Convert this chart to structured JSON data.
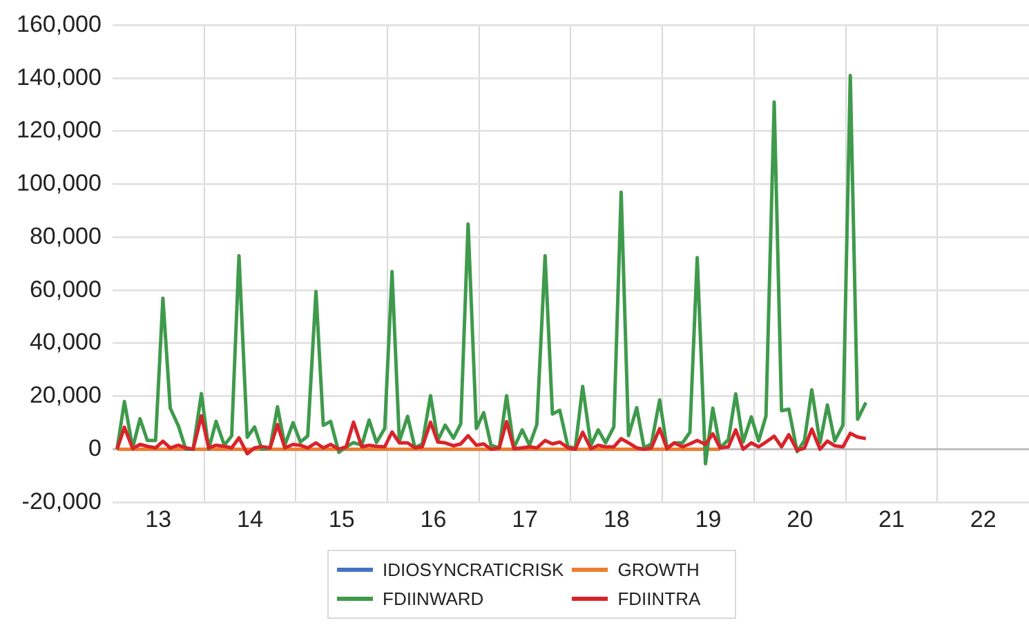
{
  "chart_data": {
    "type": "line",
    "x": [
      12.55,
      12.63,
      12.72,
      12.8,
      12.88,
      12.97,
      13.05,
      13.13,
      13.22,
      13.3,
      13.38,
      13.47,
      13.55,
      13.63,
      13.72,
      13.8,
      13.88,
      13.97,
      14.05,
      14.13,
      14.22,
      14.3,
      14.38,
      14.47,
      14.55,
      14.63,
      14.72,
      14.8,
      14.88,
      14.97,
      15.05,
      15.13,
      15.22,
      15.3,
      15.38,
      15.47,
      15.55,
      15.63,
      15.72,
      15.8,
      15.88,
      15.97,
      16.05,
      16.13,
      16.22,
      16.3,
      16.38,
      16.47,
      16.55,
      16.63,
      16.72,
      16.8,
      16.88,
      16.97,
      17.05,
      17.13,
      17.22,
      17.3,
      17.38,
      17.47,
      17.55,
      17.63,
      17.72,
      17.8,
      17.88,
      17.97,
      18.05,
      18.13,
      18.22,
      18.3,
      18.38,
      18.47,
      18.55,
      18.63,
      18.72,
      18.8,
      18.88,
      18.97,
      19.05,
      19.13,
      19.22,
      19.3,
      19.38,
      19.47,
      19.55,
      19.63,
      19.72,
      19.8,
      19.88,
      19.97,
      20.05,
      20.13,
      20.22,
      20.3,
      20.38,
      20.47,
      20.55,
      20.63,
      20.72
    ],
    "series": [
      {
        "name": "IDIOSYNCRATICRISK",
        "color": "#4472c4",
        "values": [
          null,
          null,
          null,
          null,
          null,
          null,
          null,
          null,
          null,
          null,
          null,
          null,
          null,
          null,
          null,
          null,
          null,
          null,
          null,
          null,
          null,
          null,
          null,
          null,
          null,
          null,
          null,
          null,
          null,
          null,
          null,
          null,
          null,
          null,
          null,
          null,
          null,
          null,
          null,
          null,
          null,
          null,
          null,
          null,
          null,
          null,
          null,
          null,
          null,
          null,
          null,
          null,
          null,
          null,
          null,
          null,
          null,
          null,
          null,
          null,
          null,
          null,
          null,
          null,
          null,
          null,
          null,
          null,
          null,
          null,
          null,
          null,
          null,
          null,
          null,
          null,
          null,
          null,
          null,
          null,
          null,
          null,
          null,
          null,
          null,
          null,
          null,
          null,
          null,
          null,
          null,
          null,
          null,
          null,
          null,
          null,
          null,
          null,
          null
        ]
      },
      {
        "name": "GROWTH",
        "color": "#ed7d31",
        "values": [
          0,
          0,
          0,
          0,
          0,
          0,
          0,
          0,
          0,
          0,
          0,
          0,
          0,
          0,
          0,
          0,
          0,
          0,
          0,
          0,
          0,
          0,
          0,
          0,
          0,
          0,
          0,
          0,
          0,
          0,
          0,
          0,
          0,
          0,
          0,
          0,
          0,
          0,
          0,
          0,
          0,
          0,
          0,
          0,
          0,
          0,
          0,
          0,
          0,
          0,
          0,
          0,
          0,
          0,
          0,
          0,
          0,
          0,
          0,
          0,
          0,
          0,
          0,
          0,
          0,
          0,
          0,
          0,
          0,
          0,
          0,
          0,
          0,
          0,
          0,
          0,
          0,
          0,
          0,
          0,
          null,
          null,
          null,
          null,
          null,
          null,
          null,
          null,
          null,
          null,
          null,
          null,
          null,
          null,
          null,
          null,
          null,
          null,
          null
        ]
      },
      {
        "name": "FDIINWARD",
        "color": "#3f9a4c",
        "values": [
          0,
          18000,
          500,
          11500,
          3300,
          3300,
          57000,
          15500,
          8700,
          0,
          0,
          21000,
          0,
          10500,
          1500,
          5000,
          73000,
          4500,
          8400,
          0,
          500,
          16000,
          1500,
          10000,
          2700,
          5000,
          59500,
          9000,
          10500,
          -1200,
          900,
          2500,
          1500,
          11000,
          2500,
          7800,
          67000,
          3000,
          12400,
          500,
          2000,
          20200,
          3300,
          9100,
          4200,
          9600,
          85000,
          7800,
          13800,
          1500,
          500,
          20200,
          500,
          7300,
          1500,
          9300,
          73000,
          13300,
          14700,
          900,
          500,
          23700,
          1500,
          7300,
          2400,
          8400,
          97000,
          5100,
          15700,
          500,
          2000,
          18600,
          500,
          2400,
          2400,
          6400,
          72300,
          -5500,
          15500,
          500,
          3600,
          20900,
          2700,
          12200,
          3100,
          12500,
          131000,
          14500,
          15100,
          -900,
          3300,
          22400,
          2400,
          16700,
          3100,
          9100,
          141000,
          11300,
          17600
        ]
      },
      {
        "name": "FDIINTRA",
        "color": "#d9232a",
        "values": [
          0,
          8300,
          200,
          1800,
          1100,
          500,
          3000,
          500,
          1500,
          500,
          0,
          12600,
          500,
          1500,
          1100,
          500,
          4300,
          -1700,
          500,
          1000,
          500,
          9300,
          500,
          1800,
          1500,
          500,
          2400,
          500,
          1800,
          0,
          900,
          10200,
          900,
          1500,
          1100,
          900,
          6500,
          2400,
          2400,
          500,
          900,
          10200,
          2700,
          2400,
          1300,
          2000,
          5100,
          1500,
          2000,
          0,
          500,
          10400,
          200,
          500,
          900,
          500,
          3300,
          2000,
          2700,
          500,
          0,
          6400,
          200,
          1500,
          900,
          900,
          4000,
          2400,
          500,
          0,
          500,
          7800,
          200,
          2400,
          900,
          2000,
          3300,
          1800,
          5800,
          500,
          900,
          7300,
          0,
          2400,
          900,
          2700,
          4900,
          900,
          5500,
          -400,
          400,
          7600,
          0,
          3100,
          1300,
          900,
          6000,
          4600,
          4000
        ]
      }
    ],
    "xlim": [
      12.5,
      22.5
    ],
    "xticks": [
      13,
      {
        "value": 13.5,
        "label": null
      },
      14,
      {
        "value": 14.5,
        "label": null
      },
      15,
      {
        "value": 15.5,
        "label": null
      },
      16,
      {
        "value": 16.5,
        "label": null
      },
      17,
      {
        "value": 17.5,
        "label": null
      },
      18,
      {
        "value": 18.5,
        "label": null
      },
      19,
      {
        "value": 19.5,
        "label": null
      },
      20,
      {
        "value": 20.5,
        "label": null
      },
      21,
      {
        "value": 21.5,
        "label": null
      },
      22
    ],
    "ylim": [
      -20000,
      160000
    ],
    "yticks": [
      {
        "value": -20000,
        "label": "-20,000"
      },
      0,
      {
        "value": 20000,
        "label": "20,000"
      },
      {
        "value": 40000,
        "label": "40,000"
      },
      {
        "value": 60000,
        "label": "60,000"
      },
      {
        "value": 80000,
        "label": "80,000"
      },
      {
        "value": 100000,
        "label": "100,000"
      },
      {
        "value": 120000,
        "label": "120,000"
      },
      {
        "value": 140000,
        "label": "140,000"
      },
      {
        "value": 160000,
        "label": "160,000"
      }
    ],
    "grid": true,
    "legend": "bottom",
    "marker": "none",
    "line_style": "solid"
  }
}
